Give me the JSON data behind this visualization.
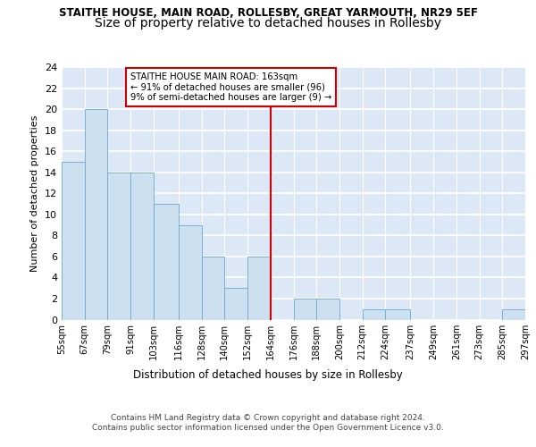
{
  "title": "STAITHE HOUSE, MAIN ROAD, ROLLESBY, GREAT YARMOUTH, NR29 5EF",
  "subtitle": "Size of property relative to detached houses in Rollesby",
  "xlabel": "Distribution of detached houses by size in Rollesby",
  "ylabel": "Number of detached properties",
  "bin_edges": [
    55,
    67,
    79,
    91,
    103,
    116,
    128,
    140,
    152,
    164,
    176,
    188,
    200,
    212,
    224,
    237,
    249,
    261,
    273,
    285,
    297
  ],
  "bin_labels": [
    "55sqm",
    "67sqm",
    "79sqm",
    "91sqm",
    "103sqm",
    "116sqm",
    "128sqm",
    "140sqm",
    "152sqm",
    "164sqm",
    "176sqm",
    "188sqm",
    "200sqm",
    "212sqm",
    "224sqm",
    "237sqm",
    "249sqm",
    "261sqm",
    "273sqm",
    "285sqm",
    "297sqm"
  ],
  "counts": [
    15,
    20,
    14,
    14,
    11,
    9,
    6,
    3,
    6,
    0,
    2,
    2,
    0,
    1,
    1,
    0,
    0,
    0,
    0,
    1
  ],
  "bar_color": "#cce0f0",
  "bar_edge_color": "#7aaed6",
  "vline_x": 164,
  "vline_color": "#cc0000",
  "annotation_text": "STAITHE HOUSE MAIN ROAD: 163sqm\n← 91% of detached houses are smaller (96)\n9% of semi-detached houses are larger (9) →",
  "annotation_box_color": "#cc0000",
  "ylim": [
    0,
    24
  ],
  "yticks": [
    0,
    2,
    4,
    6,
    8,
    10,
    12,
    14,
    16,
    18,
    20,
    22,
    24
  ],
  "background_color": "#dce8f5",
  "footer_line1": "Contains HM Land Registry data © Crown copyright and database right 2024.",
  "footer_line2": "Contains public sector information licensed under the Open Government Licence v3.0.",
  "title_fontsize": 8.5,
  "subtitle_fontsize": 10
}
